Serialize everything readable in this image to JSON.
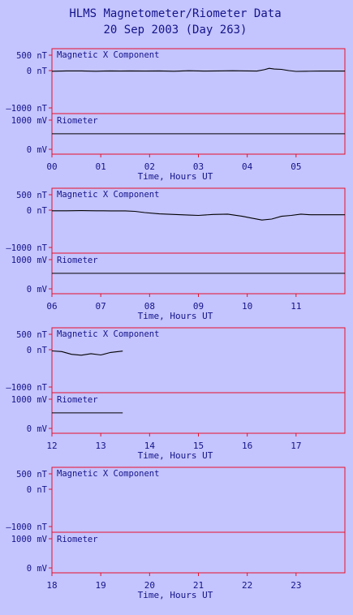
{
  "title": "HLMS Magnetometer/Riometer Data",
  "subtitle": "20 Sep 2003 (Day 263)",
  "colors": {
    "background": "#c4c4fe",
    "frame": "#e8102a",
    "text": "#14148a",
    "trace": "#000000"
  },
  "chart_data": {
    "type": "line",
    "xlabel": "Time, Hours UT",
    "mag_label": "Magnetic X Component",
    "rio_label": "Riometer",
    "mag_ticks": [
      "500 nT",
      "0 nT",
      "–1000 nT"
    ],
    "rio_ticks": [
      "1000 mV",
      "0 mV"
    ],
    "mag_ylim": [
      -1150,
      600
    ],
    "rio_ylim": [
      -50,
      1200
    ],
    "rows": [
      {
        "xticks": [
          "00",
          "01",
          "02",
          "03",
          "04",
          "05"
        ],
        "magnetic_x": {
          "x": [
            0,
            0.3,
            0.6,
            0.9,
            1.2,
            1.4,
            1.6,
            1.9,
            2.2,
            2.5,
            2.8,
            3.1,
            3.4,
            3.7,
            4.0,
            4.2,
            4.35,
            4.45,
            4.55,
            4.7,
            4.85,
            5.0,
            5.2,
            5.5,
            5.8,
            6.0
          ],
          "y": [
            -20,
            -10,
            -10,
            -20,
            -10,
            -15,
            -10,
            -15,
            -10,
            -20,
            -5,
            -15,
            -10,
            -5,
            -10,
            -15,
            30,
            75,
            50,
            40,
            0,
            -25,
            -20,
            -15,
            -15,
            -15
          ]
        },
        "riometer": {
          "x": [
            0,
            6.0
          ],
          "y": [
            530,
            530
          ]
        }
      },
      {
        "xticks": [
          "06",
          "07",
          "08",
          "09",
          "10",
          "11"
        ],
        "magnetic_x": {
          "x": [
            6.0,
            6.3,
            6.6,
            6.9,
            7.2,
            7.5,
            7.7,
            7.9,
            8.2,
            8.5,
            8.8,
            9.0,
            9.3,
            9.6,
            9.9,
            10.1,
            10.3,
            10.5,
            10.7,
            10.9,
            11.1,
            11.3,
            11.6,
            12.0
          ],
          "y": [
            -20,
            -20,
            -15,
            -20,
            -25,
            -25,
            -40,
            -80,
            -120,
            -140,
            -160,
            -170,
            -140,
            -130,
            -200,
            -260,
            -320,
            -290,
            -200,
            -170,
            -130,
            -150,
            -150,
            -150
          ]
        },
        "riometer": {
          "x": [
            6.0,
            12.0
          ],
          "y": [
            530,
            530
          ]
        }
      },
      {
        "xticks": [
          "12",
          "13",
          "14",
          "15",
          "16",
          "17"
        ],
        "magnetic_x": {
          "x": [
            12.0,
            12.2,
            12.4,
            12.6,
            12.8,
            13.0,
            13.2,
            13.45
          ],
          "y": [
            -40,
            -60,
            -150,
            -180,
            -130,
            -170,
            -90,
            -45
          ]
        },
        "riometer": {
          "x": [
            12.0,
            13.45
          ],
          "y": [
            530,
            530
          ]
        }
      },
      {
        "xticks": [
          "18",
          "19",
          "20",
          "21",
          "22",
          "23"
        ]
      }
    ]
  }
}
